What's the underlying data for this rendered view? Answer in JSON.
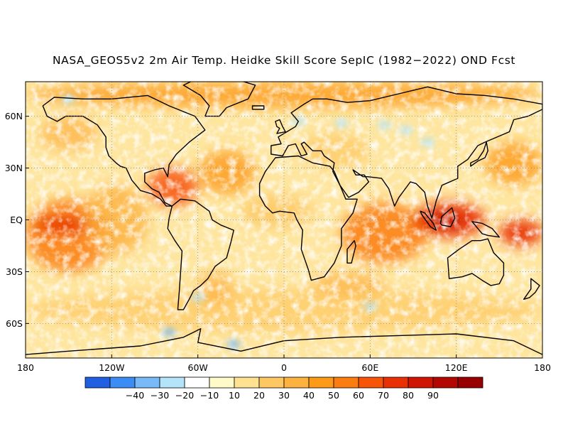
{
  "title": "NASA_GEOS5v2 2m Air Temp. Heidke Skill Score SepIC (1982−2022) OND Fcst",
  "map": {
    "lat_ticks": [
      {
        "value": 60,
        "label": "60N"
      },
      {
        "value": 30,
        "label": "30N"
      },
      {
        "value": 0,
        "label": "EQ"
      },
      {
        "value": -30,
        "label": "30S"
      },
      {
        "value": -60,
        "label": "60S"
      }
    ],
    "lon_ticks": [
      {
        "value": -180,
        "label": "180"
      },
      {
        "value": -120,
        "label": "120W"
      },
      {
        "value": -60,
        "label": "60W"
      },
      {
        "value": 0,
        "label": "0"
      },
      {
        "value": 60,
        "label": "60E"
      },
      {
        "value": 120,
        "label": "120E"
      },
      {
        "value": 180,
        "label": "180"
      }
    ],
    "lat_range": [
      -80,
      80
    ],
    "lon_range": [
      -180,
      180
    ],
    "grid": "dotted"
  },
  "colorbar": {
    "colors": [
      "#1f5fe0",
      "#3c8cf5",
      "#78b9f8",
      "#b4e4fa",
      "#ffffff",
      "#fffac8",
      "#fee191",
      "#fdc861",
      "#fdb13f",
      "#fd9a18",
      "#fb7d10",
      "#f75408",
      "#e92f04",
      "#cf1503",
      "#b30702",
      "#960000"
    ],
    "labels": [
      "−40",
      "−30",
      "−20",
      "−10",
      "10",
      "20",
      "30",
      "40",
      "50",
      "60",
      "70",
      "80",
      "90"
    ]
  }
}
